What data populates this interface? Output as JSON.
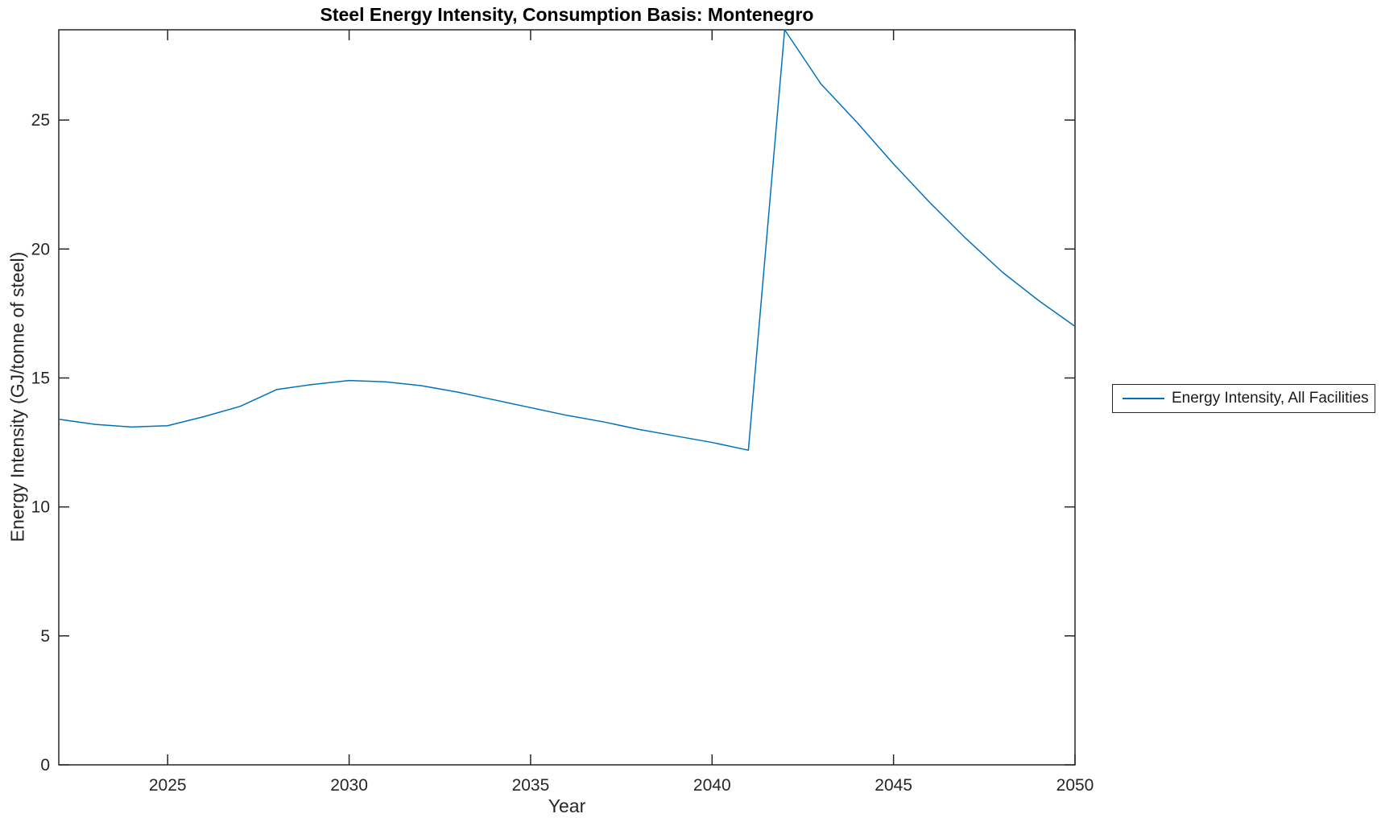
{
  "chart_data": {
    "type": "line",
    "title": "Steel Energy Intensity, Consumption Basis: Montenegro",
    "xlabel": "Year",
    "ylabel": "Energy Intensity (GJ/tonne of steel)",
    "xlim": [
      2022,
      2050
    ],
    "ylim": [
      0,
      28.5
    ],
    "xticks": [
      2025,
      2030,
      2035,
      2040,
      2045,
      2050
    ],
    "yticks": [
      0,
      5,
      10,
      15,
      20,
      25
    ],
    "grid": false,
    "axes_color": "#262626",
    "legend": {
      "position": "right-outside",
      "entries": [
        {
          "label": "Energy Intensity, All Facilities",
          "color": "#0072BD"
        }
      ]
    },
    "series": [
      {
        "name": "Energy Intensity, All Facilities",
        "color": "#0072BD",
        "x": [
          2022,
          2023,
          2024,
          2025,
          2026,
          2027,
          2028,
          2029,
          2030,
          2031,
          2032,
          2033,
          2034,
          2035,
          2036,
          2037,
          2038,
          2039,
          2040,
          2041,
          2042,
          2043,
          2044,
          2045,
          2046,
          2047,
          2048,
          2049,
          2050
        ],
        "values": [
          13.4,
          13.2,
          13.1,
          13.15,
          13.5,
          13.9,
          14.55,
          14.75,
          14.9,
          14.85,
          14.7,
          14.45,
          14.15,
          13.85,
          13.55,
          13.3,
          13.0,
          12.75,
          12.5,
          12.2,
          28.5,
          26.4,
          24.9,
          23.3,
          21.8,
          20.4,
          19.1,
          18.0,
          17.0
        ]
      }
    ]
  }
}
